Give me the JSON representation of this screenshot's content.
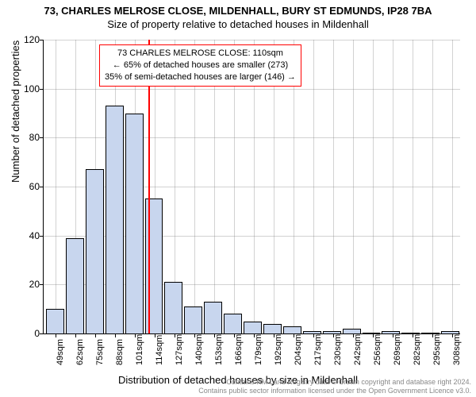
{
  "title": "73, CHARLES MELROSE CLOSE, MILDENHALL, BURY ST EDMUNDS, IP28 7BA",
  "subtitle": "Size of property relative to detached houses in Mildenhall",
  "chart": {
    "type": "histogram",
    "ylabel": "Number of detached properties",
    "xlabel": "Distribution of detached houses by size in Mildenhall",
    "ylim_max": 120,
    "ytick_step": 20,
    "yticks": [
      0,
      20,
      40,
      60,
      80,
      100,
      120
    ],
    "xtick_labels": [
      "49sqm",
      "62sqm",
      "75sqm",
      "88sqm",
      "101sqm",
      "114sqm",
      "127sqm",
      "140sqm",
      "153sqm",
      "166sqm",
      "179sqm",
      "192sqm",
      "204sqm",
      "217sqm",
      "230sqm",
      "242sqm",
      "256sqm",
      "269sqm",
      "282sqm",
      "295sqm",
      "308sqm"
    ],
    "values": [
      10,
      39,
      67,
      93,
      90,
      55,
      21,
      11,
      13,
      8,
      5,
      4,
      3,
      1,
      1,
      2,
      0,
      1,
      0,
      0,
      1
    ],
    "bar_fill": "#c8d6ee",
    "bar_stroke": "#000000",
    "background_color": "#ffffff",
    "grid_color": "#7f7f7f",
    "marker": {
      "position_index": 4.7,
      "color": "#ff0000"
    }
  },
  "annotation": {
    "line1": "73 CHARLES MELROSE CLOSE: 110sqm",
    "line2": "← 65% of detached houses are smaller (273)",
    "line3": "35% of semi-detached houses are larger (146) →",
    "border_color": "#ff0000"
  },
  "footer": {
    "line1": "Contains HM Land Registry data © Crown copyright and database right 2024.",
    "line2": "Contains public sector information licensed under the Open Government Licence v3.0."
  }
}
